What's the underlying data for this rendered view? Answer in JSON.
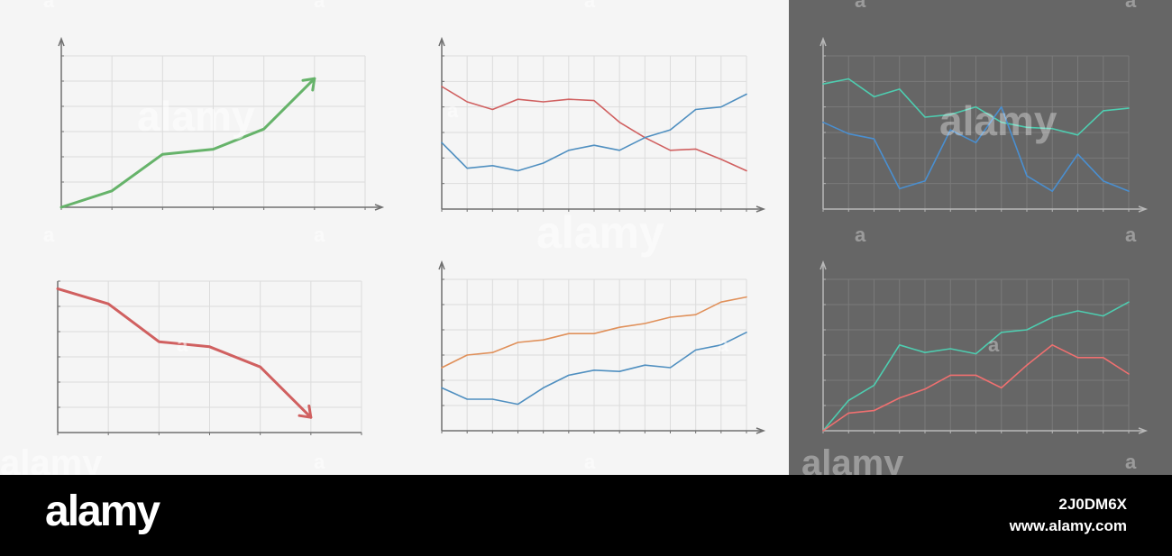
{
  "colors": {
    "light_background": "#f5f5f5",
    "dark_background": "#666666",
    "footer_background": "#000000",
    "green": "#66b36a",
    "red": "#d06060",
    "blue": "#4f8fc0",
    "orange": "#e0905a",
    "teal": "#4ecdb0",
    "dark_blue": "#4a8fd0",
    "salmon": "#f07070"
  },
  "watermark": {
    "brand": "alamy",
    "letter": "a"
  },
  "footer": {
    "brand": "alamy",
    "image_id": "2J0DM6X",
    "url": "www.alamy.com"
  },
  "chart_data": [
    {
      "type": "line",
      "panel": "light",
      "xlim": [
        0,
        6
      ],
      "ylim": [
        0,
        6
      ],
      "grid": true,
      "arrow": true,
      "x": [
        0,
        1,
        2,
        3,
        4,
        5
      ],
      "series": [
        {
          "color": "green",
          "values": [
            0,
            0.65,
            2.1,
            2.3,
            3.1,
            5.1
          ]
        }
      ]
    },
    {
      "type": "line",
      "panel": "light",
      "xlim": [
        0,
        12
      ],
      "ylim": [
        0,
        6
      ],
      "grid": true,
      "x": [
        0,
        1,
        2,
        3,
        4,
        5,
        6,
        7,
        8,
        9,
        10,
        11,
        12
      ],
      "series": [
        {
          "color": "red",
          "values": [
            4.8,
            4.2,
            3.9,
            4.3,
            4.2,
            4.3,
            4.25,
            3.4,
            2.8,
            2.3,
            2.35,
            1.95,
            1.5
          ]
        },
        {
          "color": "blue",
          "values": [
            2.6,
            1.6,
            1.7,
            1.5,
            1.8,
            2.3,
            2.5,
            2.3,
            2.8,
            3.1,
            3.9,
            4.0,
            4.5
          ]
        }
      ]
    },
    {
      "type": "line",
      "panel": "dark",
      "xlim": [
        0,
        12
      ],
      "ylim": [
        0,
        6
      ],
      "grid": true,
      "x": [
        0,
        1,
        2,
        3,
        4,
        5,
        6,
        7,
        8,
        9,
        10,
        11,
        12
      ],
      "series": [
        {
          "color": "teal",
          "values": [
            4.9,
            5.1,
            4.4,
            4.7,
            3.6,
            3.7,
            4.0,
            3.4,
            3.2,
            3.15,
            2.9,
            3.85,
            3.95
          ]
        },
        {
          "color": "dark_blue",
          "values": [
            3.4,
            2.95,
            2.75,
            0.8,
            1.1,
            3.1,
            2.6,
            4.0,
            1.3,
            0.7,
            2.15,
            1.1,
            0.7
          ]
        }
      ]
    },
    {
      "type": "line",
      "panel": "light",
      "xlim": [
        0,
        6
      ],
      "ylim": [
        0,
        6
      ],
      "grid": true,
      "arrow": true,
      "x": [
        0,
        1,
        2,
        3,
        4,
        5
      ],
      "series": [
        {
          "color": "red",
          "values": [
            5.7,
            5.1,
            3.6,
            3.4,
            2.6,
            0.6
          ]
        }
      ]
    },
    {
      "type": "line",
      "panel": "light",
      "xlim": [
        0,
        12
      ],
      "ylim": [
        0,
        6
      ],
      "grid": true,
      "x": [
        0,
        1,
        2,
        3,
        4,
        5,
        6,
        7,
        8,
        9,
        10,
        11,
        12
      ],
      "series": [
        {
          "color": "orange",
          "values": [
            2.5,
            3.0,
            3.1,
            3.5,
            3.6,
            3.85,
            3.85,
            4.1,
            4.25,
            4.5,
            4.6,
            5.1,
            5.3
          ]
        },
        {
          "color": "blue",
          "values": [
            1.7,
            1.25,
            1.25,
            1.05,
            1.7,
            2.2,
            2.4,
            2.35,
            2.6,
            2.5,
            3.2,
            3.4,
            3.9
          ]
        }
      ]
    },
    {
      "type": "line",
      "panel": "dark",
      "xlim": [
        0,
        12
      ],
      "ylim": [
        0,
        6
      ],
      "grid": true,
      "x": [
        0,
        1,
        2,
        3,
        4,
        5,
        6,
        7,
        8,
        9,
        10,
        11,
        12
      ],
      "series": [
        {
          "color": "teal",
          "values": [
            0,
            1.2,
            1.8,
            3.4,
            3.1,
            3.25,
            3.05,
            3.9,
            4.0,
            4.5,
            4.75,
            4.55,
            5.1
          ]
        },
        {
          "color": "salmon",
          "values": [
            0,
            0.7,
            0.8,
            1.3,
            1.65,
            2.2,
            2.2,
            1.7,
            2.6,
            3.4,
            2.9,
            2.9,
            2.25
          ]
        }
      ]
    }
  ]
}
